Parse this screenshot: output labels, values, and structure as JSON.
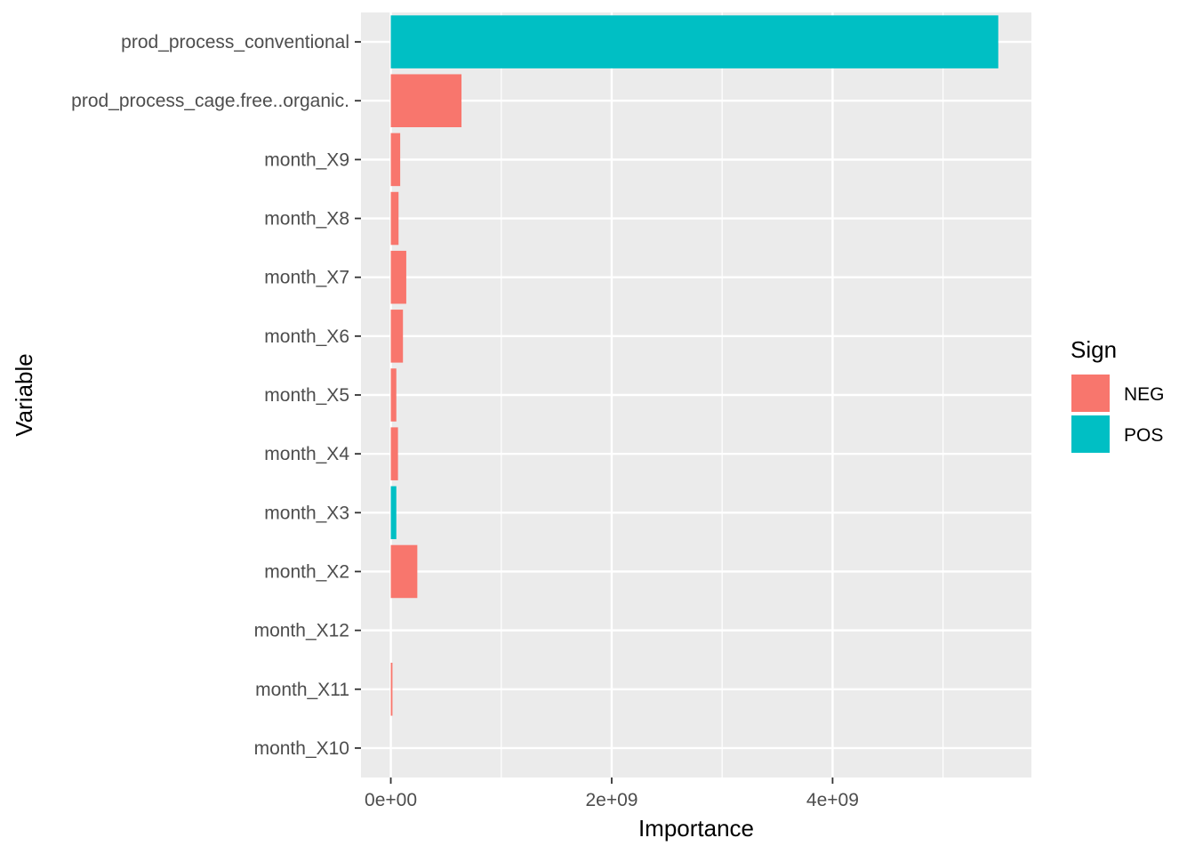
{
  "chart_data": {
    "type": "bar",
    "orientation": "horizontal",
    "xlabel": "Importance",
    "ylabel": "Variable",
    "xlim": [
      -270000000,
      5800000000
    ],
    "x_ticks": [
      {
        "value": 0,
        "label": "0e+00"
      },
      {
        "value": 2000000000,
        "label": "2e+09"
      },
      {
        "value": 4000000000,
        "label": "4e+09"
      }
    ],
    "x_minor_ticks": [
      1000000000,
      3000000000,
      5000000000
    ],
    "categories": [
      "prod_process_conventional",
      "prod_process_cage.free..organic.",
      "month_X9",
      "month_X8",
      "month_X7",
      "month_X6",
      "month_X5",
      "month_X4",
      "month_X3",
      "month_X2",
      "month_X12",
      "month_X11",
      "month_X10"
    ],
    "values": [
      5500000000,
      640000000,
      85000000,
      70000000,
      140000000,
      110000000,
      50000000,
      65000000,
      50000000,
      240000000,
      0,
      15000000,
      0
    ],
    "signs": [
      "POS",
      "NEG",
      "NEG",
      "NEG",
      "NEG",
      "NEG",
      "NEG",
      "NEG",
      "POS",
      "NEG",
      "NEG",
      "NEG",
      "NEG"
    ],
    "legend": {
      "title": "Sign",
      "position": "right",
      "entries": [
        {
          "label": "NEG",
          "color": "#F8766D"
        },
        {
          "label": "POS",
          "color": "#00BFC4"
        }
      ]
    },
    "grid": true,
    "panel_background": "#EBEBEB"
  }
}
